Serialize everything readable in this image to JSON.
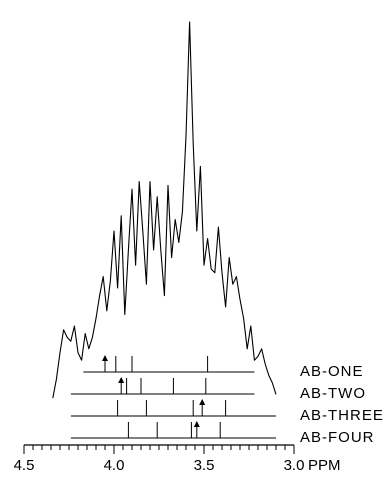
{
  "chart_data": {
    "type": "line",
    "title": "",
    "xlabel": "PPM",
    "xlim": [
      4.5,
      3.0
    ],
    "x_ticks": [
      {
        "value": 4.5,
        "label": "4.5"
      },
      {
        "value": 4.0,
        "label": "4.0"
      },
      {
        "value": 3.5,
        "label": "3.5"
      },
      {
        "value": 3.0,
        "label": "3.0"
      }
    ],
    "x_unit": "PPM",
    "spectrum": {
      "x": [
        3.1,
        3.12,
        3.14,
        3.16,
        3.18,
        3.2,
        3.22,
        3.24,
        3.26,
        3.28,
        3.3,
        3.32,
        3.34,
        3.36,
        3.38,
        3.4,
        3.42,
        3.44,
        3.46,
        3.48,
        3.5,
        3.52,
        3.54,
        3.56,
        3.58,
        3.6,
        3.62,
        3.64,
        3.66,
        3.68,
        3.7,
        3.72,
        3.74,
        3.76,
        3.78,
        3.8,
        3.82,
        3.84,
        3.86,
        3.88,
        3.9,
        3.92,
        3.94,
        3.96,
        3.98,
        4.0,
        4.02,
        4.04,
        4.06,
        4.08,
        4.1,
        4.12,
        4.14,
        4.16,
        4.18,
        4.2,
        4.22,
        4.24,
        4.26,
        4.28,
        4.3,
        4.32,
        4.34
      ],
      "y": [
        0.02,
        0.05,
        0.07,
        0.1,
        0.14,
        0.12,
        0.11,
        0.2,
        0.14,
        0.22,
        0.27,
        0.33,
        0.31,
        0.38,
        0.25,
        0.34,
        0.46,
        0.34,
        0.35,
        0.43,
        0.36,
        0.62,
        0.45,
        0.68,
        1.0,
        0.7,
        0.5,
        0.42,
        0.48,
        0.38,
        0.57,
        0.28,
        0.4,
        0.54,
        0.4,
        0.58,
        0.31,
        0.45,
        0.58,
        0.36,
        0.56,
        0.4,
        0.23,
        0.49,
        0.3,
        0.45,
        0.32,
        0.24,
        0.33,
        0.28,
        0.22,
        0.17,
        0.14,
        0.18,
        0.11,
        0.13,
        0.2,
        0.16,
        0.17,
        0.19,
        0.13,
        0.06,
        0.01
      ]
    },
    "stick_spectra": [
      {
        "label": "AB-ONE",
        "range": [
          3.22,
          4.17
        ],
        "sticks": [
          3.48,
          3.9,
          3.99,
          4.05
        ],
        "arrows": [
          4.05
        ]
      },
      {
        "label": "AB-TWO",
        "range": [
          3.22,
          4.24
        ],
        "sticks": [
          3.49,
          3.67,
          3.85,
          3.93,
          3.96
        ],
        "arrows": [
          3.96
        ]
      },
      {
        "label": "AB-THREE",
        "range": [
          3.1,
          4.24
        ],
        "sticks": [
          3.38,
          3.51,
          3.56,
          3.82,
          3.98
        ],
        "arrows": [
          3.51
        ]
      },
      {
        "label": "AB-FOUR",
        "range": [
          3.1,
          4.24
        ],
        "sticks": [
          3.41,
          3.54,
          3.57,
          3.76,
          3.92
        ],
        "arrows": [
          3.54
        ]
      }
    ]
  }
}
